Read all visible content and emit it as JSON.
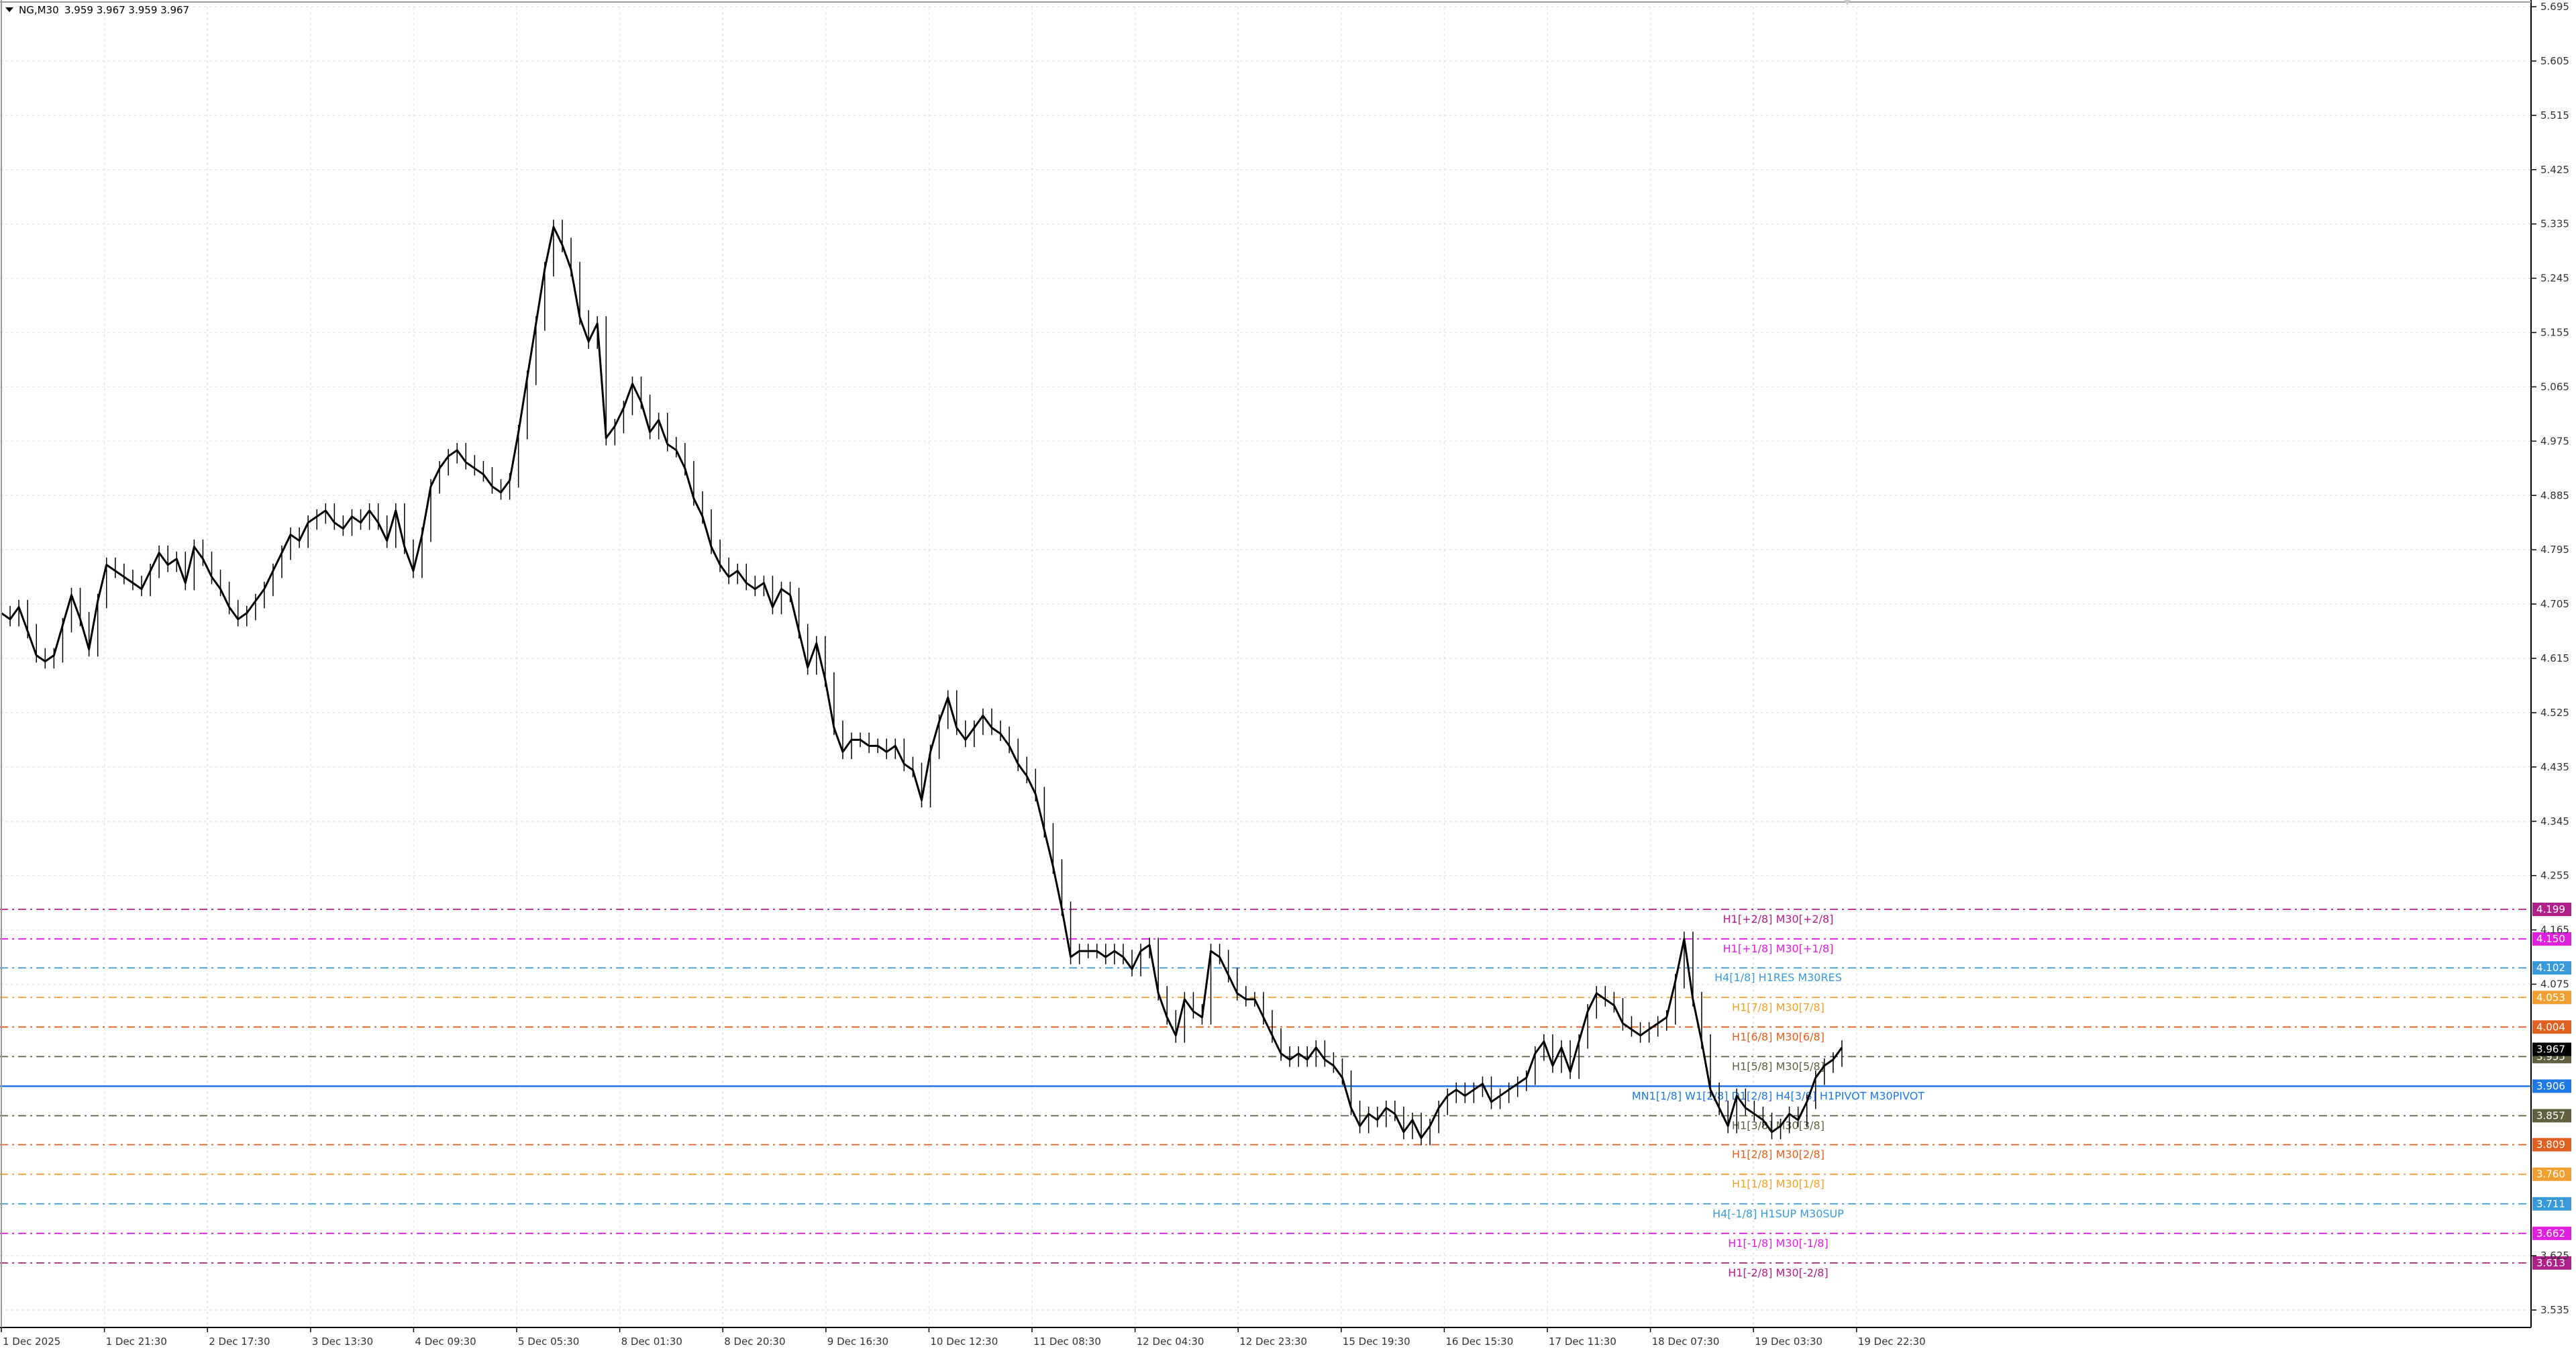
{
  "window": {
    "symbol_label": "NG,M30",
    "ohlc_text": "3.959 3.967 3.959 3.967",
    "menu_icon": "triangle-down-icon"
  },
  "colors": {
    "background": "#ffffff",
    "grid": "#e6e6e6",
    "price": "#000000",
    "axis_text": "#333333",
    "pivot_line": "#1e78e6"
  },
  "chart_data": {
    "type": "line",
    "title": "",
    "xlabel": "",
    "ylabel": "",
    "ylim": [
      3.48,
      5.705
    ],
    "grid": true,
    "y_ticks": [
      "5.695",
      "5.605",
      "5.515",
      "5.425",
      "5.335",
      "5.245",
      "5.155",
      "5.065",
      "4.975",
      "4.885",
      "4.795",
      "4.705",
      "4.615",
      "4.525",
      "4.435",
      "4.345",
      "4.255",
      "4.165",
      "4.075",
      "3.625",
      "3.535"
    ],
    "x_ticks": [
      "1 Dec 2025",
      "1 Dec 21:30",
      "2 Dec 17:30",
      "3 Dec 13:30",
      "4 Dec 09:30",
      "5 Dec 05:30",
      "8 Dec 01:30",
      "8 Dec 20:30",
      "9 Dec 16:30",
      "10 Dec 12:30",
      "11 Dec 08:30",
      "12 Dec 04:30",
      "12 Dec 23:30",
      "15 Dec 19:30",
      "16 Dec 15:30",
      "17 Dec 11:30",
      "18 Dec 07:30",
      "19 Dec 03:30",
      "19 Dec 22:30"
    ],
    "series": [
      {
        "points": [
          [
            0,
            4.69
          ],
          [
            2,
            4.68
          ],
          [
            4,
            4.7
          ],
          [
            6,
            4.66
          ],
          [
            8,
            4.62
          ],
          [
            10,
            4.61
          ],
          [
            12,
            4.62
          ],
          [
            14,
            4.67
          ],
          [
            16,
            4.72
          ],
          [
            18,
            4.68
          ],
          [
            20,
            4.63
          ],
          [
            22,
            4.71
          ],
          [
            24,
            4.77
          ],
          [
            26,
            4.76
          ],
          [
            28,
            4.75
          ],
          [
            30,
            4.74
          ],
          [
            32,
            4.73
          ],
          [
            34,
            4.76
          ],
          [
            36,
            4.79
          ],
          [
            38,
            4.77
          ],
          [
            40,
            4.78
          ],
          [
            42,
            4.74
          ],
          [
            44,
            4.8
          ],
          [
            46,
            4.78
          ],
          [
            48,
            4.75
          ],
          [
            50,
            4.73
          ],
          [
            52,
            4.7
          ],
          [
            54,
            4.68
          ],
          [
            56,
            4.69
          ],
          [
            58,
            4.71
          ],
          [
            60,
            4.73
          ],
          [
            62,
            4.76
          ],
          [
            64,
            4.79
          ],
          [
            66,
            4.82
          ],
          [
            68,
            4.81
          ],
          [
            70,
            4.84
          ],
          [
            72,
            4.85
          ],
          [
            74,
            4.86
          ],
          [
            76,
            4.84
          ],
          [
            78,
            4.83
          ],
          [
            80,
            4.85
          ],
          [
            82,
            4.84
          ],
          [
            84,
            4.86
          ],
          [
            86,
            4.84
          ],
          [
            88,
            4.81
          ],
          [
            90,
            4.86
          ],
          [
            92,
            4.8
          ],
          [
            94,
            4.76
          ],
          [
            96,
            4.82
          ],
          [
            98,
            4.9
          ],
          [
            100,
            4.93
          ],
          [
            102,
            4.95
          ],
          [
            104,
            4.96
          ],
          [
            106,
            4.94
          ],
          [
            108,
            4.93
          ],
          [
            110,
            4.92
          ],
          [
            112,
            4.9
          ],
          [
            114,
            4.89
          ],
          [
            116,
            4.91
          ],
          [
            118,
            4.99
          ],
          [
            120,
            5.08
          ],
          [
            122,
            5.17
          ],
          [
            124,
            5.26
          ],
          [
            126,
            5.33
          ],
          [
            128,
            5.3
          ],
          [
            130,
            5.26
          ],
          [
            132,
            5.18
          ],
          [
            134,
            5.14
          ],
          [
            136,
            5.17
          ],
          [
            138,
            4.98
          ],
          [
            140,
            5.0
          ],
          [
            142,
            5.03
          ],
          [
            144,
            5.07
          ],
          [
            146,
            5.04
          ],
          [
            148,
            4.99
          ],
          [
            150,
            5.01
          ],
          [
            152,
            4.97
          ],
          [
            154,
            4.96
          ],
          [
            156,
            4.93
          ],
          [
            158,
            4.88
          ],
          [
            160,
            4.85
          ],
          [
            162,
            4.8
          ],
          [
            164,
            4.77
          ],
          [
            166,
            4.75
          ],
          [
            168,
            4.76
          ],
          [
            170,
            4.74
          ],
          [
            172,
            4.73
          ],
          [
            174,
            4.74
          ],
          [
            176,
            4.7
          ],
          [
            178,
            4.73
          ],
          [
            180,
            4.72
          ],
          [
            182,
            4.66
          ],
          [
            184,
            4.6
          ],
          [
            186,
            4.64
          ],
          [
            188,
            4.58
          ],
          [
            190,
            4.5
          ],
          [
            192,
            4.46
          ],
          [
            194,
            4.48
          ],
          [
            196,
            4.48
          ],
          [
            198,
            4.47
          ],
          [
            200,
            4.47
          ],
          [
            202,
            4.46
          ],
          [
            204,
            4.47
          ],
          [
            206,
            4.44
          ],
          [
            208,
            4.43
          ],
          [
            210,
            4.38
          ],
          [
            212,
            4.46
          ],
          [
            214,
            4.51
          ],
          [
            216,
            4.55
          ],
          [
            218,
            4.5
          ],
          [
            220,
            4.48
          ],
          [
            222,
            4.5
          ],
          [
            224,
            4.52
          ],
          [
            226,
            4.5
          ],
          [
            228,
            4.49
          ],
          [
            230,
            4.47
          ],
          [
            232,
            4.44
          ],
          [
            234,
            4.42
          ],
          [
            236,
            4.39
          ],
          [
            238,
            4.33
          ],
          [
            240,
            4.27
          ],
          [
            242,
            4.2
          ],
          [
            244,
            4.12
          ],
          [
            246,
            4.13
          ],
          [
            248,
            4.13
          ],
          [
            250,
            4.13
          ],
          [
            252,
            4.12
          ],
          [
            254,
            4.13
          ],
          [
            256,
            4.12
          ],
          [
            258,
            4.1
          ],
          [
            260,
            4.13
          ],
          [
            262,
            4.14
          ],
          [
            264,
            4.06
          ],
          [
            266,
            4.02
          ],
          [
            268,
            3.99
          ],
          [
            270,
            4.05
          ],
          [
            272,
            4.03
          ],
          [
            274,
            4.02
          ],
          [
            276,
            4.13
          ],
          [
            278,
            4.12
          ],
          [
            280,
            4.09
          ],
          [
            282,
            4.06
          ],
          [
            284,
            4.05
          ],
          [
            286,
            4.05
          ],
          [
            288,
            4.02
          ],
          [
            290,
            3.99
          ],
          [
            292,
            3.96
          ],
          [
            294,
            3.95
          ],
          [
            296,
            3.96
          ],
          [
            298,
            3.95
          ],
          [
            300,
            3.97
          ],
          [
            302,
            3.95
          ],
          [
            304,
            3.94
          ],
          [
            306,
            3.92
          ],
          [
            308,
            3.87
          ],
          [
            310,
            3.84
          ],
          [
            312,
            3.86
          ],
          [
            314,
            3.85
          ],
          [
            316,
            3.87
          ],
          [
            318,
            3.86
          ],
          [
            320,
            3.83
          ],
          [
            322,
            3.85
          ],
          [
            324,
            3.82
          ],
          [
            326,
            3.84
          ],
          [
            328,
            3.87
          ],
          [
            330,
            3.89
          ],
          [
            332,
            3.9
          ],
          [
            334,
            3.89
          ],
          [
            336,
            3.9
          ],
          [
            338,
            3.91
          ],
          [
            340,
            3.88
          ],
          [
            342,
            3.89
          ],
          [
            344,
            3.9
          ],
          [
            346,
            3.91
          ],
          [
            348,
            3.92
          ],
          [
            350,
            3.96
          ],
          [
            352,
            3.98
          ],
          [
            354,
            3.94
          ],
          [
            356,
            3.97
          ],
          [
            358,
            3.93
          ],
          [
            360,
            3.98
          ],
          [
            362,
            4.03
          ],
          [
            364,
            4.06
          ],
          [
            366,
            4.05
          ],
          [
            368,
            4.04
          ],
          [
            370,
            4.01
          ],
          [
            372,
            4.0
          ],
          [
            374,
            3.99
          ],
          [
            376,
            4.0
          ],
          [
            378,
            4.01
          ],
          [
            380,
            4.02
          ],
          [
            382,
            4.08
          ],
          [
            384,
            4.15
          ],
          [
            386,
            4.05
          ],
          [
            388,
            3.98
          ],
          [
            390,
            3.9
          ],
          [
            392,
            3.87
          ],
          [
            394,
            3.84
          ],
          [
            396,
            3.89
          ],
          [
            398,
            3.87
          ],
          [
            400,
            3.86
          ],
          [
            402,
            3.85
          ],
          [
            404,
            3.83
          ],
          [
            406,
            3.84
          ],
          [
            408,
            3.86
          ],
          [
            410,
            3.85
          ],
          [
            412,
            3.88
          ],
          [
            414,
            3.92
          ],
          [
            416,
            3.94
          ],
          [
            418,
            3.95
          ],
          [
            420,
            3.97
          ]
        ]
      }
    ],
    "levels": [
      {
        "label": "H1[+2/8] M30[+2/8]",
        "price_text": "4.199",
        "value": 4.199,
        "color": "#b0208a"
      },
      {
        "label": "H1[+1/8] M30[+1/8]",
        "price_text": "4.150",
        "value": 4.15,
        "color": "#e020e0"
      },
      {
        "label": "H4[1/8] H1RES M30RES",
        "price_text": "4.102",
        "value": 4.102,
        "color": "#3a9ad9"
      },
      {
        "label": "H1[7/8] M30[7/8]",
        "price_text": "4.053",
        "value": 4.053,
        "color": "#f0a030"
      },
      {
        "label": "H1[6/8] M30[6/8]",
        "price_text": "4.004",
        "value": 4.004,
        "color": "#e06020"
      },
      {
        "label": "H1[5/8] M30[5/8]",
        "price_text": "3.955",
        "value": 3.955,
        "color": "#606040"
      },
      {
        "label": "MN1[1/8] W1[2/8] D1[2/8] H4[3/8] H1PIVOT M30PIVOT",
        "price_text": "3.906",
        "value": 3.906,
        "color": "#1e78e6"
      },
      {
        "label": "H1[3/8] M30[3/8]",
        "price_text": "3.857",
        "value": 3.857,
        "color": "#606040"
      },
      {
        "label": "H1[2/8] M30[2/8]",
        "price_text": "3.809",
        "value": 3.809,
        "color": "#e06020"
      },
      {
        "label": "H1[1/8] M30[1/8]",
        "price_text": "3.760",
        "value": 3.76,
        "color": "#f0a030"
      },
      {
        "label": "H4[-1/8] H1SUP M30SUP",
        "price_text": "3.711",
        "value": 3.711,
        "color": "#3a9ad9"
      },
      {
        "label": "H1[-1/8] M30[-1/8]",
        "price_text": "3.662",
        "value": 3.662,
        "color": "#e020e0"
      },
      {
        "label": "H1[-2/8] M30[-2/8]",
        "price_text": "3.613",
        "value": 3.613,
        "color": "#b0208a"
      }
    ],
    "current_price": {
      "price_text": "3.967",
      "value": 3.967,
      "color": "#000000"
    }
  }
}
